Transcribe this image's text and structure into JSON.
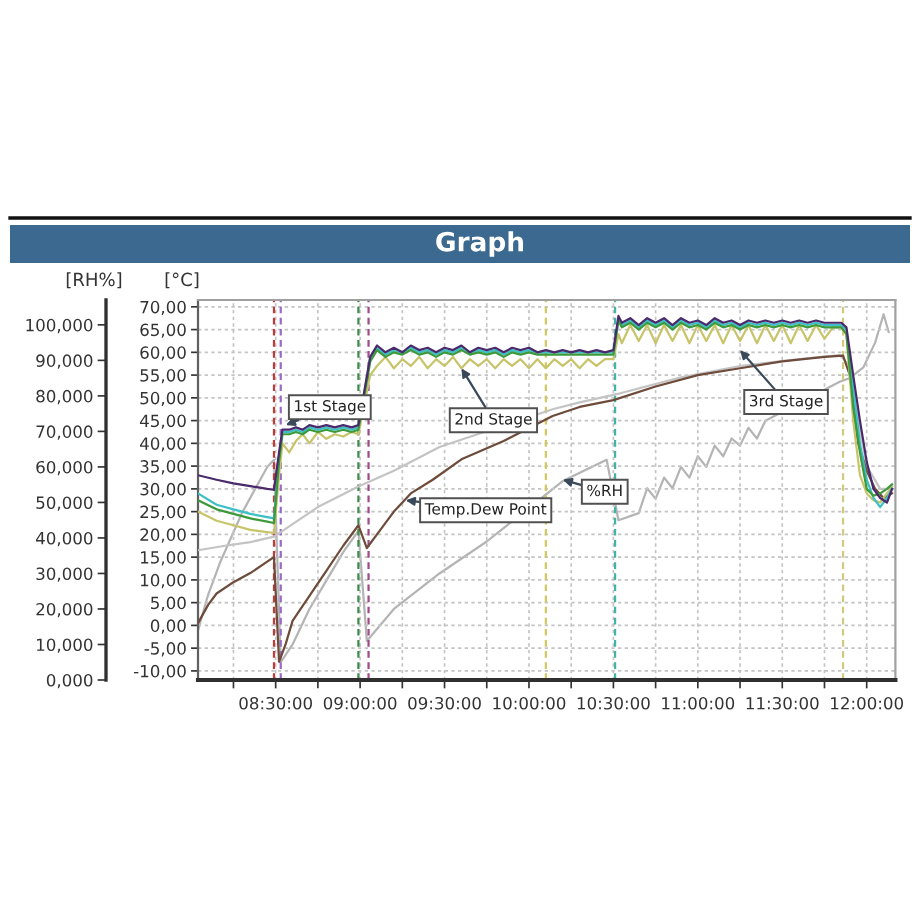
{
  "chart_data": {
    "type": "line",
    "title": "Graph",
    "ylabel": "[°C]",
    "y2label": "[RH%]",
    "x": [
      8.04,
      8.15,
      8.25,
      8.35,
      8.45,
      8.49,
      8.52,
      8.54,
      8.58,
      8.62,
      8.66,
      8.7,
      8.75,
      8.8,
      8.85,
      8.9,
      8.95,
      8.99,
      9.06,
      9.1,
      9.15,
      9.2,
      9.25,
      9.3,
      9.35,
      9.4,
      9.45,
      9.5,
      9.55,
      9.6,
      9.65,
      9.7,
      9.75,
      9.8,
      9.85,
      9.9,
      9.95,
      10.0,
      10.05,
      10.1,
      10.15,
      10.2,
      10.25,
      10.3,
      10.35,
      10.4,
      10.45,
      10.5,
      10.53,
      10.55,
      10.6,
      10.65,
      10.7,
      10.75,
      10.8,
      10.85,
      10.9,
      10.95,
      11.0,
      11.05,
      11.1,
      11.15,
      11.2,
      11.25,
      11.3,
      11.35,
      11.4,
      11.45,
      11.5,
      11.55,
      11.6,
      11.65,
      11.7,
      11.75,
      11.8,
      11.85,
      11.88,
      11.92,
      11.96,
      12.0,
      12.04,
      12.08,
      12.12,
      12.15
    ],
    "series": [
      {
        "color": "#c4c4c4",
        "x": [
          8.04,
          8.2,
          8.35,
          8.49,
          8.53,
          8.75,
          8.99,
          9.2,
          9.47,
          10.14,
          10.3,
          10.54,
          10.9,
          11.25,
          11.6,
          11.84,
          11.9,
          11.95,
          12.0,
          12.08,
          12.15
        ],
        "values": [
          16.5,
          17.5,
          18.3,
          19.5,
          20.5,
          26.0,
          30.5,
          34.0,
          39.2,
          47.5,
          49.0,
          51.0,
          54.5,
          57.0,
          58.5,
          59.4,
          57.0,
          45.0,
          35.0,
          30.0,
          30.0
        ]
      },
      {
        "color": "#b4b4b4",
        "axis": "y2",
        "x": [
          8.04,
          8.1,
          8.17,
          8.3,
          8.45,
          8.49,
          8.53,
          8.6,
          8.7,
          8.8,
          8.9,
          8.99,
          9.04,
          9.2,
          9.47,
          9.75,
          10.2,
          10.46,
          10.53,
          10.65,
          10.7,
          10.75,
          10.8,
          10.85,
          10.9,
          10.95,
          11.0,
          11.05,
          11.1,
          11.15,
          11.2,
          11.25,
          11.3,
          11.35,
          11.4,
          11.84,
          11.9,
          11.98,
          12.05,
          12.1,
          12.13
        ],
        "values": [
          14,
          24,
          33,
          47,
          60,
          62,
          5,
          10,
          20,
          28,
          36,
          42,
          11,
          20,
          30,
          39,
          56,
          62,
          45,
          47,
          54,
          51,
          57,
          54,
          60,
          57,
          63,
          60,
          66,
          63,
          68,
          66,
          71,
          68,
          73,
          84,
          85,
          88,
          95,
          103,
          98
        ]
      },
      {
        "color": "#6e4b3a",
        "x": [
          8.04,
          8.1,
          8.15,
          8.25,
          8.35,
          8.45,
          8.49,
          8.52,
          8.56,
          8.6,
          8.7,
          8.8,
          8.9,
          8.99,
          9.04,
          9.1,
          9.2,
          9.3,
          9.43,
          9.6,
          9.85,
          10.14,
          10.3,
          10.5,
          10.75,
          11.0,
          11.25,
          11.5,
          11.75,
          11.86,
          11.9,
          11.95,
          12.0,
          12.05,
          12.1,
          12.15
        ],
        "values": [
          0.5,
          4.5,
          7.0,
          9.5,
          11.5,
          14.0,
          15.0,
          -8.0,
          -4.0,
          1.0,
          6.5,
          12.0,
          17.5,
          22.0,
          17.0,
          20.0,
          25.0,
          29.0,
          32.0,
          36.5,
          40.5,
          46.0,
          48.0,
          49.5,
          52.5,
          55.0,
          56.5,
          58.0,
          59.0,
          59.3,
          55.0,
          40.0,
          34.0,
          30.0,
          28.0,
          29.0
        ]
      },
      {
        "color": "#c8c46a",
        "values": [
          25.0,
          23.0,
          22.0,
          21.0,
          20.5,
          20.3,
          33.0,
          40.0,
          38.0,
          40.5,
          42.0,
          40.0,
          42.5,
          41.0,
          42.0,
          41.5,
          42.5,
          42.0,
          55.0,
          57.0,
          59.0,
          56.5,
          58.5,
          57.0,
          59.0,
          56.5,
          58.5,
          57.0,
          59.0,
          56.5,
          58.5,
          57.0,
          58.5,
          56.5,
          58.5,
          57.0,
          58.5,
          56.5,
          58.5,
          56.5,
          58.5,
          57.0,
          58.5,
          56.5,
          58.5,
          57.0,
          58.5,
          58.5,
          64.0,
          62.0,
          66.0,
          62.5,
          66.0,
          62.0,
          66.0,
          62.5,
          66.0,
          62.0,
          66.0,
          62.5,
          66.0,
          62.0,
          66.0,
          62.5,
          66.0,
          62.0,
          66.0,
          62.5,
          66.0,
          62.0,
          66.0,
          62.5,
          66.0,
          63.0,
          65.5,
          65.5,
          64.0,
          45.0,
          33.0,
          29.0,
          27.5,
          27.0,
          29.0,
          30.5
        ]
      },
      {
        "color": "#3cc0c8",
        "values": [
          29.0,
          26.5,
          25.5,
          24.5,
          23.8,
          23.5,
          37.0,
          42.5,
          42.5,
          43.0,
          42.5,
          43.5,
          43.0,
          43.5,
          43.0,
          43.5,
          43.0,
          43.5,
          59.0,
          61.0,
          59.5,
          60.5,
          60.0,
          61.0,
          60.0,
          60.5,
          59.5,
          60.5,
          60.0,
          61.0,
          60.0,
          60.5,
          60.0,
          60.5,
          59.5,
          60.5,
          60.0,
          60.5,
          60.0,
          60.0,
          60.0,
          60.0,
          60.0,
          60.0,
          60.0,
          60.0,
          60.0,
          60.0,
          67.5,
          66.0,
          67.0,
          65.5,
          67.0,
          66.0,
          67.0,
          65.5,
          67.0,
          66.0,
          66.5,
          65.5,
          67.0,
          66.0,
          66.5,
          65.5,
          66.5,
          66.0,
          66.5,
          66.0,
          66.5,
          66.0,
          66.5,
          66.0,
          66.5,
          66.0,
          66.0,
          66.0,
          65.0,
          52.0,
          40.0,
          32.0,
          28.0,
          26.0,
          28.0,
          30.0
        ]
      },
      {
        "color": "#3c9a3c",
        "values": [
          27.5,
          25.5,
          24.5,
          23.5,
          22.8,
          22.5,
          36.0,
          42.0,
          42.0,
          42.5,
          42.0,
          43.0,
          42.5,
          43.0,
          42.5,
          43.0,
          42.5,
          43.0,
          58.0,
          60.5,
          59.0,
          60.0,
          59.5,
          60.5,
          59.5,
          60.0,
          59.0,
          60.0,
          59.5,
          60.5,
          59.5,
          60.0,
          59.5,
          60.0,
          59.0,
          60.0,
          59.5,
          60.0,
          59.5,
          59.5,
          59.5,
          59.5,
          59.5,
          59.5,
          59.5,
          59.5,
          59.5,
          59.5,
          67.0,
          65.5,
          66.5,
          65.0,
          66.5,
          65.5,
          66.5,
          65.0,
          66.5,
          65.5,
          66.0,
          65.0,
          66.5,
          65.5,
          66.0,
          65.0,
          66.0,
          65.5,
          66.0,
          65.5,
          66.0,
          65.5,
          66.0,
          65.5,
          66.0,
          65.5,
          65.5,
          65.5,
          64.0,
          48.0,
          38.0,
          30.0,
          28.5,
          29.0,
          30.0,
          31.0
        ]
      },
      {
        "color": "#4b2a6b",
        "values": [
          33.0,
          32.0,
          31.2,
          30.6,
          30.0,
          29.8,
          38.0,
          43.0,
          43.0,
          43.5,
          43.0,
          44.0,
          43.5,
          44.0,
          43.5,
          44.0,
          43.5,
          44.0,
          59.0,
          61.5,
          60.0,
          61.0,
          60.0,
          61.5,
          60.5,
          61.0,
          60.0,
          61.0,
          60.5,
          61.5,
          60.0,
          61.0,
          60.5,
          61.0,
          60.0,
          61.0,
          60.5,
          61.0,
          60.0,
          60.5,
          60.0,
          60.5,
          60.0,
          60.5,
          60.0,
          60.5,
          60.0,
          60.5,
          68.0,
          66.5,
          67.5,
          66.0,
          67.5,
          66.5,
          67.5,
          66.0,
          67.5,
          66.5,
          67.0,
          66.0,
          67.5,
          66.5,
          67.0,
          66.0,
          67.0,
          66.5,
          67.0,
          66.5,
          67.0,
          66.5,
          67.0,
          66.5,
          67.0,
          66.5,
          66.5,
          66.5,
          65.5,
          55.0,
          45.0,
          36.0,
          30.0,
          28.0,
          27.0,
          30.0
        ]
      }
    ],
    "xlim": [
      8.04,
      12.17
    ],
    "xticks": [
      {
        "value": 8.25,
        "label": null
      },
      {
        "value": 8.5,
        "label": "08:30:00"
      },
      {
        "value": 8.75,
        "label": null
      },
      {
        "value": 9.0,
        "label": "09:00:00"
      },
      {
        "value": 9.25,
        "label": null
      },
      {
        "value": 9.5,
        "label": "09:30:00"
      },
      {
        "value": 9.75,
        "label": null
      },
      {
        "value": 10.0,
        "label": "10:00:00"
      },
      {
        "value": 10.25,
        "label": null
      },
      {
        "value": 10.5,
        "label": "10:30:00"
      },
      {
        "value": 10.75,
        "label": null
      },
      {
        "value": 11.0,
        "label": "11:00:00"
      },
      {
        "value": 11.25,
        "label": null
      },
      {
        "value": 11.5,
        "label": "11:30:00"
      },
      {
        "value": 11.75,
        "label": null
      },
      {
        "value": 12.0,
        "label": "12:00:00"
      }
    ],
    "ylim": [
      -12,
      71.5
    ],
    "yticks": [
      {
        "value": -10,
        "label": "-10,00"
      },
      {
        "value": -5,
        "label": "-5,00"
      },
      {
        "value": 0,
        "label": "0,00"
      },
      {
        "value": 5,
        "label": "5,00"
      },
      {
        "value": 10,
        "label": "10,00"
      },
      {
        "value": 15,
        "label": "15,00"
      },
      {
        "value": 20,
        "label": "20,00"
      },
      {
        "value": 25,
        "label": "25,00"
      },
      {
        "value": 30,
        "label": "30,00"
      },
      {
        "value": 35,
        "label": "35,00"
      },
      {
        "value": 40,
        "label": "40,00"
      },
      {
        "value": 45,
        "label": "45,00"
      },
      {
        "value": 50,
        "label": "50,00"
      },
      {
        "value": 55,
        "label": "55,00"
      },
      {
        "value": 60,
        "label": "60,00"
      },
      {
        "value": 65,
        "label": "65,00"
      },
      {
        "value": 70,
        "label": "70,00"
      }
    ],
    "y2lim": [
      0,
      107
    ],
    "y2ticks": [
      {
        "value": 0,
        "label": "0,000"
      },
      {
        "value": 10,
        "label": "10,000"
      },
      {
        "value": 20,
        "label": "20,000"
      },
      {
        "value": 30,
        "label": "30,000"
      },
      {
        "value": 40,
        "label": "40,000"
      },
      {
        "value": 50,
        "label": "50,000"
      },
      {
        "value": 60,
        "label": "60,000"
      },
      {
        "value": 70,
        "label": "70,000"
      },
      {
        "value": 80,
        "label": "80,000"
      },
      {
        "value": 90,
        "label": "90,000"
      },
      {
        "value": 100,
        "label": "100,000"
      }
    ],
    "grid": true,
    "ref_lines": [
      {
        "axis": "x",
        "value": 8.49,
        "color": "#c03a3a",
        "line_style": "dashed"
      },
      {
        "axis": "x",
        "value": 8.53,
        "color": "#9a6ac8",
        "line_style": "dashed"
      },
      {
        "axis": "x",
        "value": 8.99,
        "color": "#3a8a4a",
        "line_style": "dashed"
      },
      {
        "axis": "x",
        "value": 9.05,
        "color": "#a04a8a",
        "line_style": "dashed"
      },
      {
        "axis": "x",
        "value": 10.1,
        "color": "#d2c860",
        "line_style": "dashed"
      },
      {
        "axis": "x",
        "value": 10.51,
        "color": "#40b4a8",
        "line_style": "dashed"
      },
      {
        "axis": "x",
        "value": 11.86,
        "color": "#d2c880",
        "line_style": "dashed"
      }
    ],
    "annotations": [
      {
        "text": "1st Stage",
        "x": 8.56,
        "y": 44
      },
      {
        "text": "2nd Stage",
        "x": 9.6,
        "y": 56.5
      },
      {
        "text": "3rd Stage",
        "x": 11.25,
        "y": 60.5
      },
      {
        "text": "Temp.Dew Point",
        "x": 9.27,
        "y": 27.5
      },
      {
        "text": "%RH",
        "x": 10.2,
        "y": 32
      }
    ]
  }
}
